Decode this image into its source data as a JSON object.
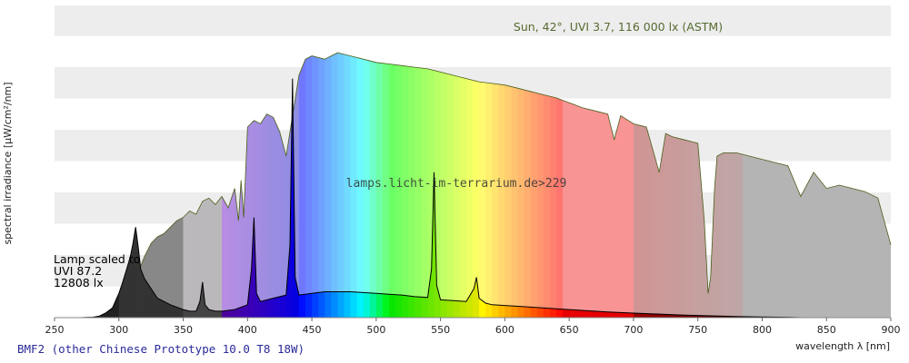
{
  "chart_data": {
    "type": "area",
    "ylabel": "spectral irradiance [µW/cm²/nm]",
    "xlabel": "wavelength λ [nm]",
    "xlim": [
      250,
      900
    ],
    "x_ticks": [
      250,
      300,
      350,
      400,
      450,
      500,
      550,
      600,
      650,
      700,
      750,
      800,
      850,
      900
    ],
    "grid": "horizontal alternating bands",
    "sun_label": "Sun, 42°, UVI 3.7, 116 000 lx (ASTM)",
    "watermark": "lamps.licht-im-terrarium.de>229",
    "lamp_label": [
      "Lamp scaled to",
      "UVI 87.2",
      "12808 lx"
    ],
    "caption": "BMF2 (other Chinese Prototype 10.0 T8 18W)",
    "series": [
      {
        "name": "Sun, 42°, UVI 3.7, 116 000 lx (ASTM)",
        "x": [
          295,
          300,
          305,
          310,
          315,
          320,
          325,
          330,
          335,
          340,
          345,
          350,
          355,
          360,
          365,
          370,
          375,
          380,
          385,
          390,
          393,
          395,
          397,
          400,
          405,
          410,
          415,
          420,
          425,
          430,
          435,
          440,
          445,
          450,
          460,
          470,
          480,
          490,
          500,
          510,
          520,
          530,
          540,
          550,
          560,
          570,
          580,
          590,
          600,
          610,
          620,
          630,
          640,
          650,
          660,
          670,
          680,
          685,
          690,
          700,
          710,
          720,
          725,
          730,
          740,
          750,
          755,
          758,
          760,
          763,
          765,
          770,
          780,
          790,
          800,
          810,
          820,
          830,
          840,
          850,
          860,
          870,
          880,
          890,
          900
        ],
        "values": [
          0,
          2,
          8,
          18,
          28,
          38,
          46,
          50,
          52,
          56,
          60,
          62,
          66,
          64,
          72,
          74,
          70,
          75,
          68,
          80,
          60,
          85,
          62,
          118,
          122,
          120,
          126,
          124,
          115,
          100,
          125,
          150,
          160,
          162,
          160,
          164,
          162,
          160,
          158,
          157,
          156,
          155,
          154,
          152,
          150,
          148,
          146,
          145,
          144,
          142,
          140,
          138,
          136,
          133,
          130,
          128,
          126,
          110,
          125,
          120,
          118,
          90,
          114,
          112,
          110,
          108,
          60,
          15,
          25,
          80,
          100,
          102,
          102,
          100,
          98,
          96,
          94,
          75,
          90,
          80,
          82,
          80,
          78,
          74,
          45
        ]
      },
      {
        "name": "Lamp scaled to UVI 87.2, 12808 lx",
        "x": [
          270,
          280,
          285,
          290,
          295,
          300,
          303,
          306,
          309,
          311,
          313,
          315,
          317,
          320,
          325,
          330,
          340,
          350,
          355,
          360,
          363,
          365,
          367,
          370,
          375,
          380,
          390,
          400,
          403,
          405,
          407,
          410,
          420,
          430,
          433,
          435,
          437,
          440,
          450,
          460,
          470,
          480,
          490,
          500,
          510,
          520,
          530,
          540,
          543,
          545,
          547,
          550,
          560,
          570,
          576,
          578,
          580,
          585,
          590,
          600,
          620,
          640,
          660,
          680,
          700,
          720,
          740,
          760,
          780,
          800,
          820,
          830
        ],
        "values": [
          0,
          0.3,
          1,
          3,
          6,
          15,
          22,
          30,
          38,
          46,
          56,
          44,
          30,
          24,
          18,
          12,
          8,
          5,
          4,
          4,
          10,
          22,
          8,
          5,
          4,
          4,
          5,
          8,
          30,
          62,
          15,
          10,
          12,
          14,
          45,
          148,
          25,
          14,
          15,
          16,
          16,
          16,
          15.5,
          15,
          14.5,
          14,
          13,
          12.5,
          30,
          90,
          20,
          11,
          10.5,
          10,
          18,
          25,
          12,
          9,
          8,
          7.5,
          6.5,
          5.5,
          4.5,
          3.5,
          2.8,
          2.2,
          1.6,
          1.1,
          0.7,
          0.4,
          0.2,
          0
        ]
      }
    ]
  }
}
